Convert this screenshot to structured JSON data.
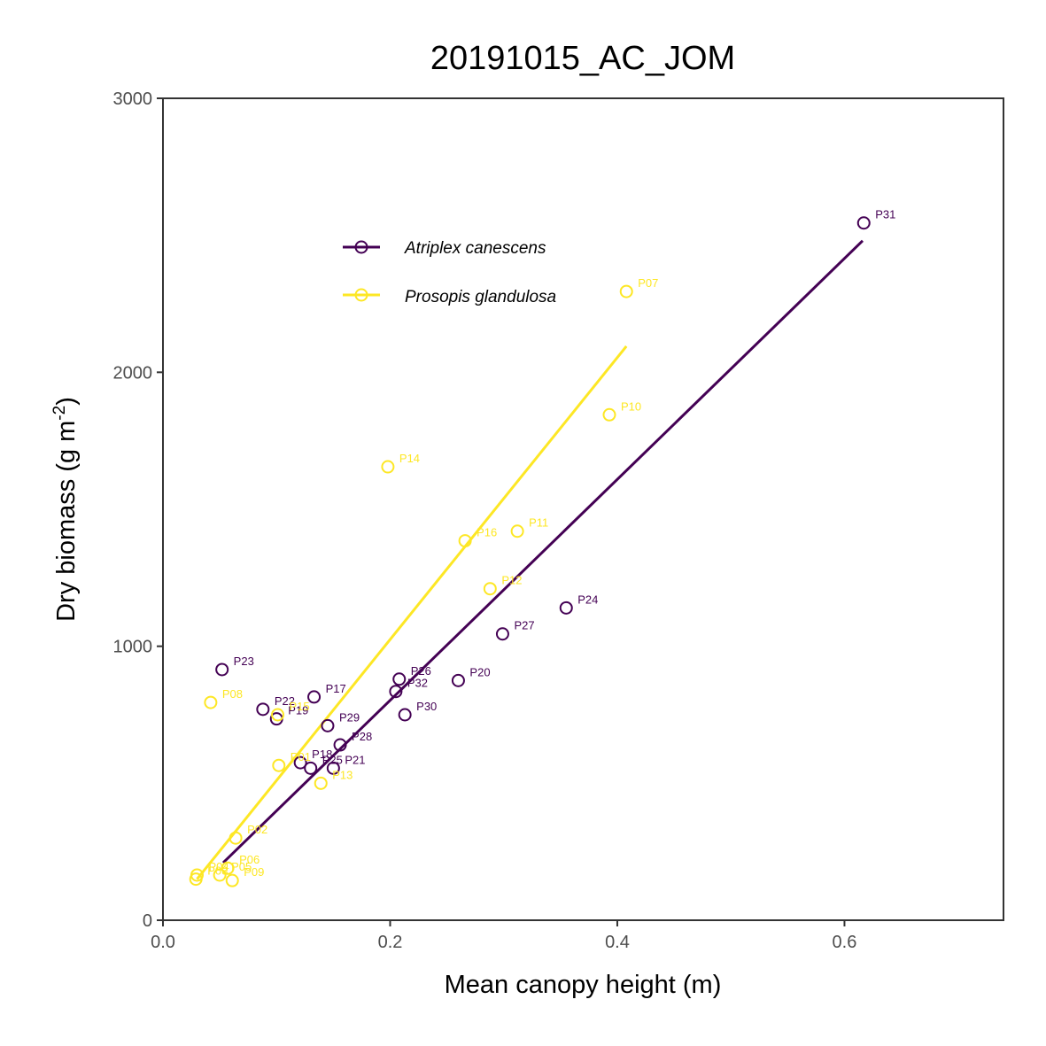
{
  "chart_data": {
    "type": "scatter",
    "title": "20191015_AC_JOM",
    "xlabel": "Mean canopy height (m)",
    "ylabel": "Dry biomass (g m",
    "ylabel_sup": "-2",
    "ylabel_end": ")",
    "xlim": [
      0,
      0.74
    ],
    "ylim": [
      0,
      3000
    ],
    "x_ticks": [
      0.0,
      0.2,
      0.4,
      0.6
    ],
    "x_tick_labels": [
      "0.0",
      "0.2",
      "0.4",
      "0.6"
    ],
    "y_ticks": [
      0,
      1000,
      2000,
      3000
    ],
    "y_tick_labels": [
      "0",
      "1000",
      "2000",
      "3000"
    ],
    "legend_position": "top-left",
    "series": [
      {
        "name": "Atriplex canescens",
        "color": "#440154",
        "fit": {
          "x": [
            0.053,
            0.616
          ],
          "y": [
            210,
            2480
          ]
        },
        "points": [
          {
            "label": "P31",
            "x": 0.617,
            "y": 2545
          },
          {
            "label": "P24",
            "x": 0.355,
            "y": 1140
          },
          {
            "label": "P27",
            "x": 0.299,
            "y": 1045
          },
          {
            "label": "P20",
            "x": 0.26,
            "y": 875
          },
          {
            "label": "P26",
            "x": 0.208,
            "y": 880
          },
          {
            "label": "P32",
            "x": 0.205,
            "y": 835
          },
          {
            "label": "P30",
            "x": 0.213,
            "y": 750
          },
          {
            "label": "P23",
            "x": 0.052,
            "y": 915
          },
          {
            "label": "P17",
            "x": 0.133,
            "y": 815
          },
          {
            "label": "P22",
            "x": 0.088,
            "y": 770
          },
          {
            "label": "P19",
            "x": 0.1,
            "y": 735
          },
          {
            "label": "P29",
            "x": 0.145,
            "y": 710
          },
          {
            "label": "P28",
            "x": 0.156,
            "y": 640
          },
          {
            "label": "P18",
            "x": 0.121,
            "y": 575
          },
          {
            "label": "P25",
            "x": 0.13,
            "y": 555
          },
          {
            "label": "P21",
            "x": 0.15,
            "y": 555
          }
        ]
      },
      {
        "name": "Prosopis glandulosa",
        "color": "#FDE725",
        "fit": {
          "x": [
            0.03,
            0.408
          ],
          "y": [
            150,
            2095
          ]
        },
        "points": [
          {
            "label": "P07",
            "x": 0.408,
            "y": 2295
          },
          {
            "label": "P10",
            "x": 0.393,
            "y": 1845
          },
          {
            "label": "P14",
            "x": 0.198,
            "y": 1655
          },
          {
            "label": "P11",
            "x": 0.312,
            "y": 1420
          },
          {
            "label": "P16",
            "x": 0.266,
            "y": 1385
          },
          {
            "label": "P12",
            "x": 0.288,
            "y": 1210
          },
          {
            "label": "P08",
            "x": 0.042,
            "y": 795
          },
          {
            "label": "P15",
            "x": 0.101,
            "y": 750
          },
          {
            "label": "P01",
            "x": 0.102,
            "y": 565
          },
          {
            "label": "P13",
            "x": 0.139,
            "y": 500
          },
          {
            "label": "P02",
            "x": 0.064,
            "y": 300
          },
          {
            "label": "P06",
            "x": 0.057,
            "y": 190
          },
          {
            "label": "P05",
            "x": 0.05,
            "y": 165
          },
          {
            "label": "P04",
            "x": 0.03,
            "y": 165
          },
          {
            "label": "P03",
            "x": 0.029,
            "y": 150
          },
          {
            "label": "P09",
            "x": 0.061,
            "y": 145
          }
        ]
      }
    ]
  }
}
